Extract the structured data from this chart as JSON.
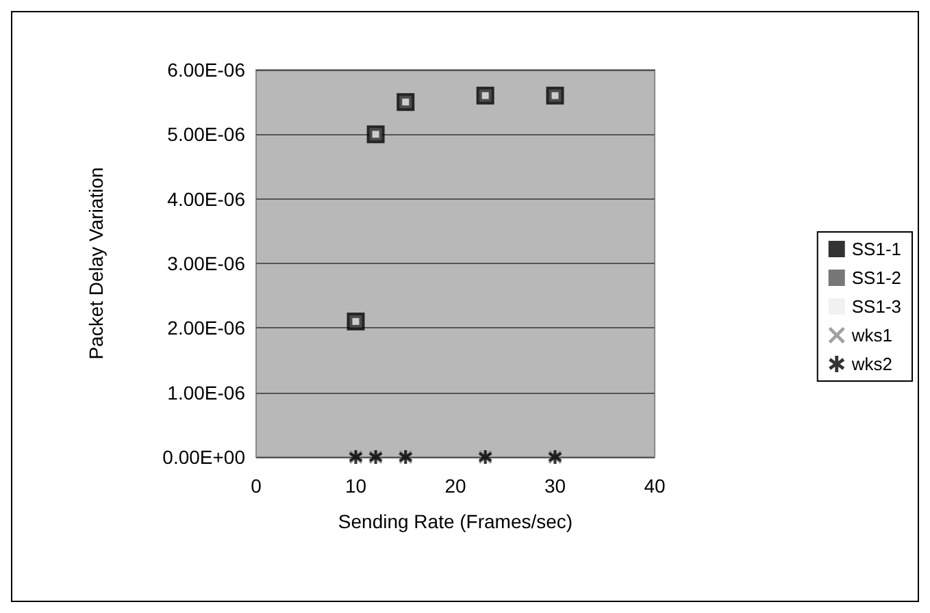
{
  "chart_data": {
    "type": "scatter",
    "xlabel": "Sending Rate (Frames/sec)",
    "ylabel": "Packet Delay Variation",
    "x": [
      10,
      12,
      15,
      23,
      30
    ],
    "series": [
      {
        "name": "SS1-1",
        "color": "#000000",
        "marker": "square",
        "values": [
          2.1e-06,
          5e-06,
          5.5e-06,
          5.6e-06,
          5.6e-06
        ]
      },
      {
        "name": "SS1-2",
        "color": "#555555",
        "marker": "square",
        "values": [
          2.1e-06,
          5e-06,
          5.5e-06,
          5.6e-06,
          5.6e-06
        ]
      },
      {
        "name": "SS1-3",
        "color": "#eeeeee",
        "marker": "square",
        "values": [
          2.1e-06,
          5e-06,
          5.5e-06,
          5.6e-06,
          5.6e-06
        ]
      },
      {
        "name": "wks1",
        "color": "#888888",
        "marker": "cross",
        "values": [
          0,
          0,
          0,
          0,
          0
        ]
      },
      {
        "name": "wks2",
        "color": "#000000",
        "marker": "star",
        "values": [
          0,
          0,
          0,
          0,
          0
        ]
      }
    ],
    "xlim": [
      0,
      40
    ],
    "xticks": [
      0,
      10,
      20,
      30,
      40
    ],
    "ylim": [
      0,
      6e-06
    ],
    "yticks": [
      {
        "value": 0,
        "label": "0.00E+00"
      },
      {
        "value": 1e-06,
        "label": "1.00E-06"
      },
      {
        "value": 2e-06,
        "label": "2.00E-06"
      },
      {
        "value": 3e-06,
        "label": "3.00E-06"
      },
      {
        "value": 4e-06,
        "label": "4.00E-06"
      },
      {
        "value": 5e-06,
        "label": "5.00E-06"
      },
      {
        "value": 6e-06,
        "label": "6.00E-06"
      }
    ],
    "grid": "y",
    "legend": "right"
  }
}
